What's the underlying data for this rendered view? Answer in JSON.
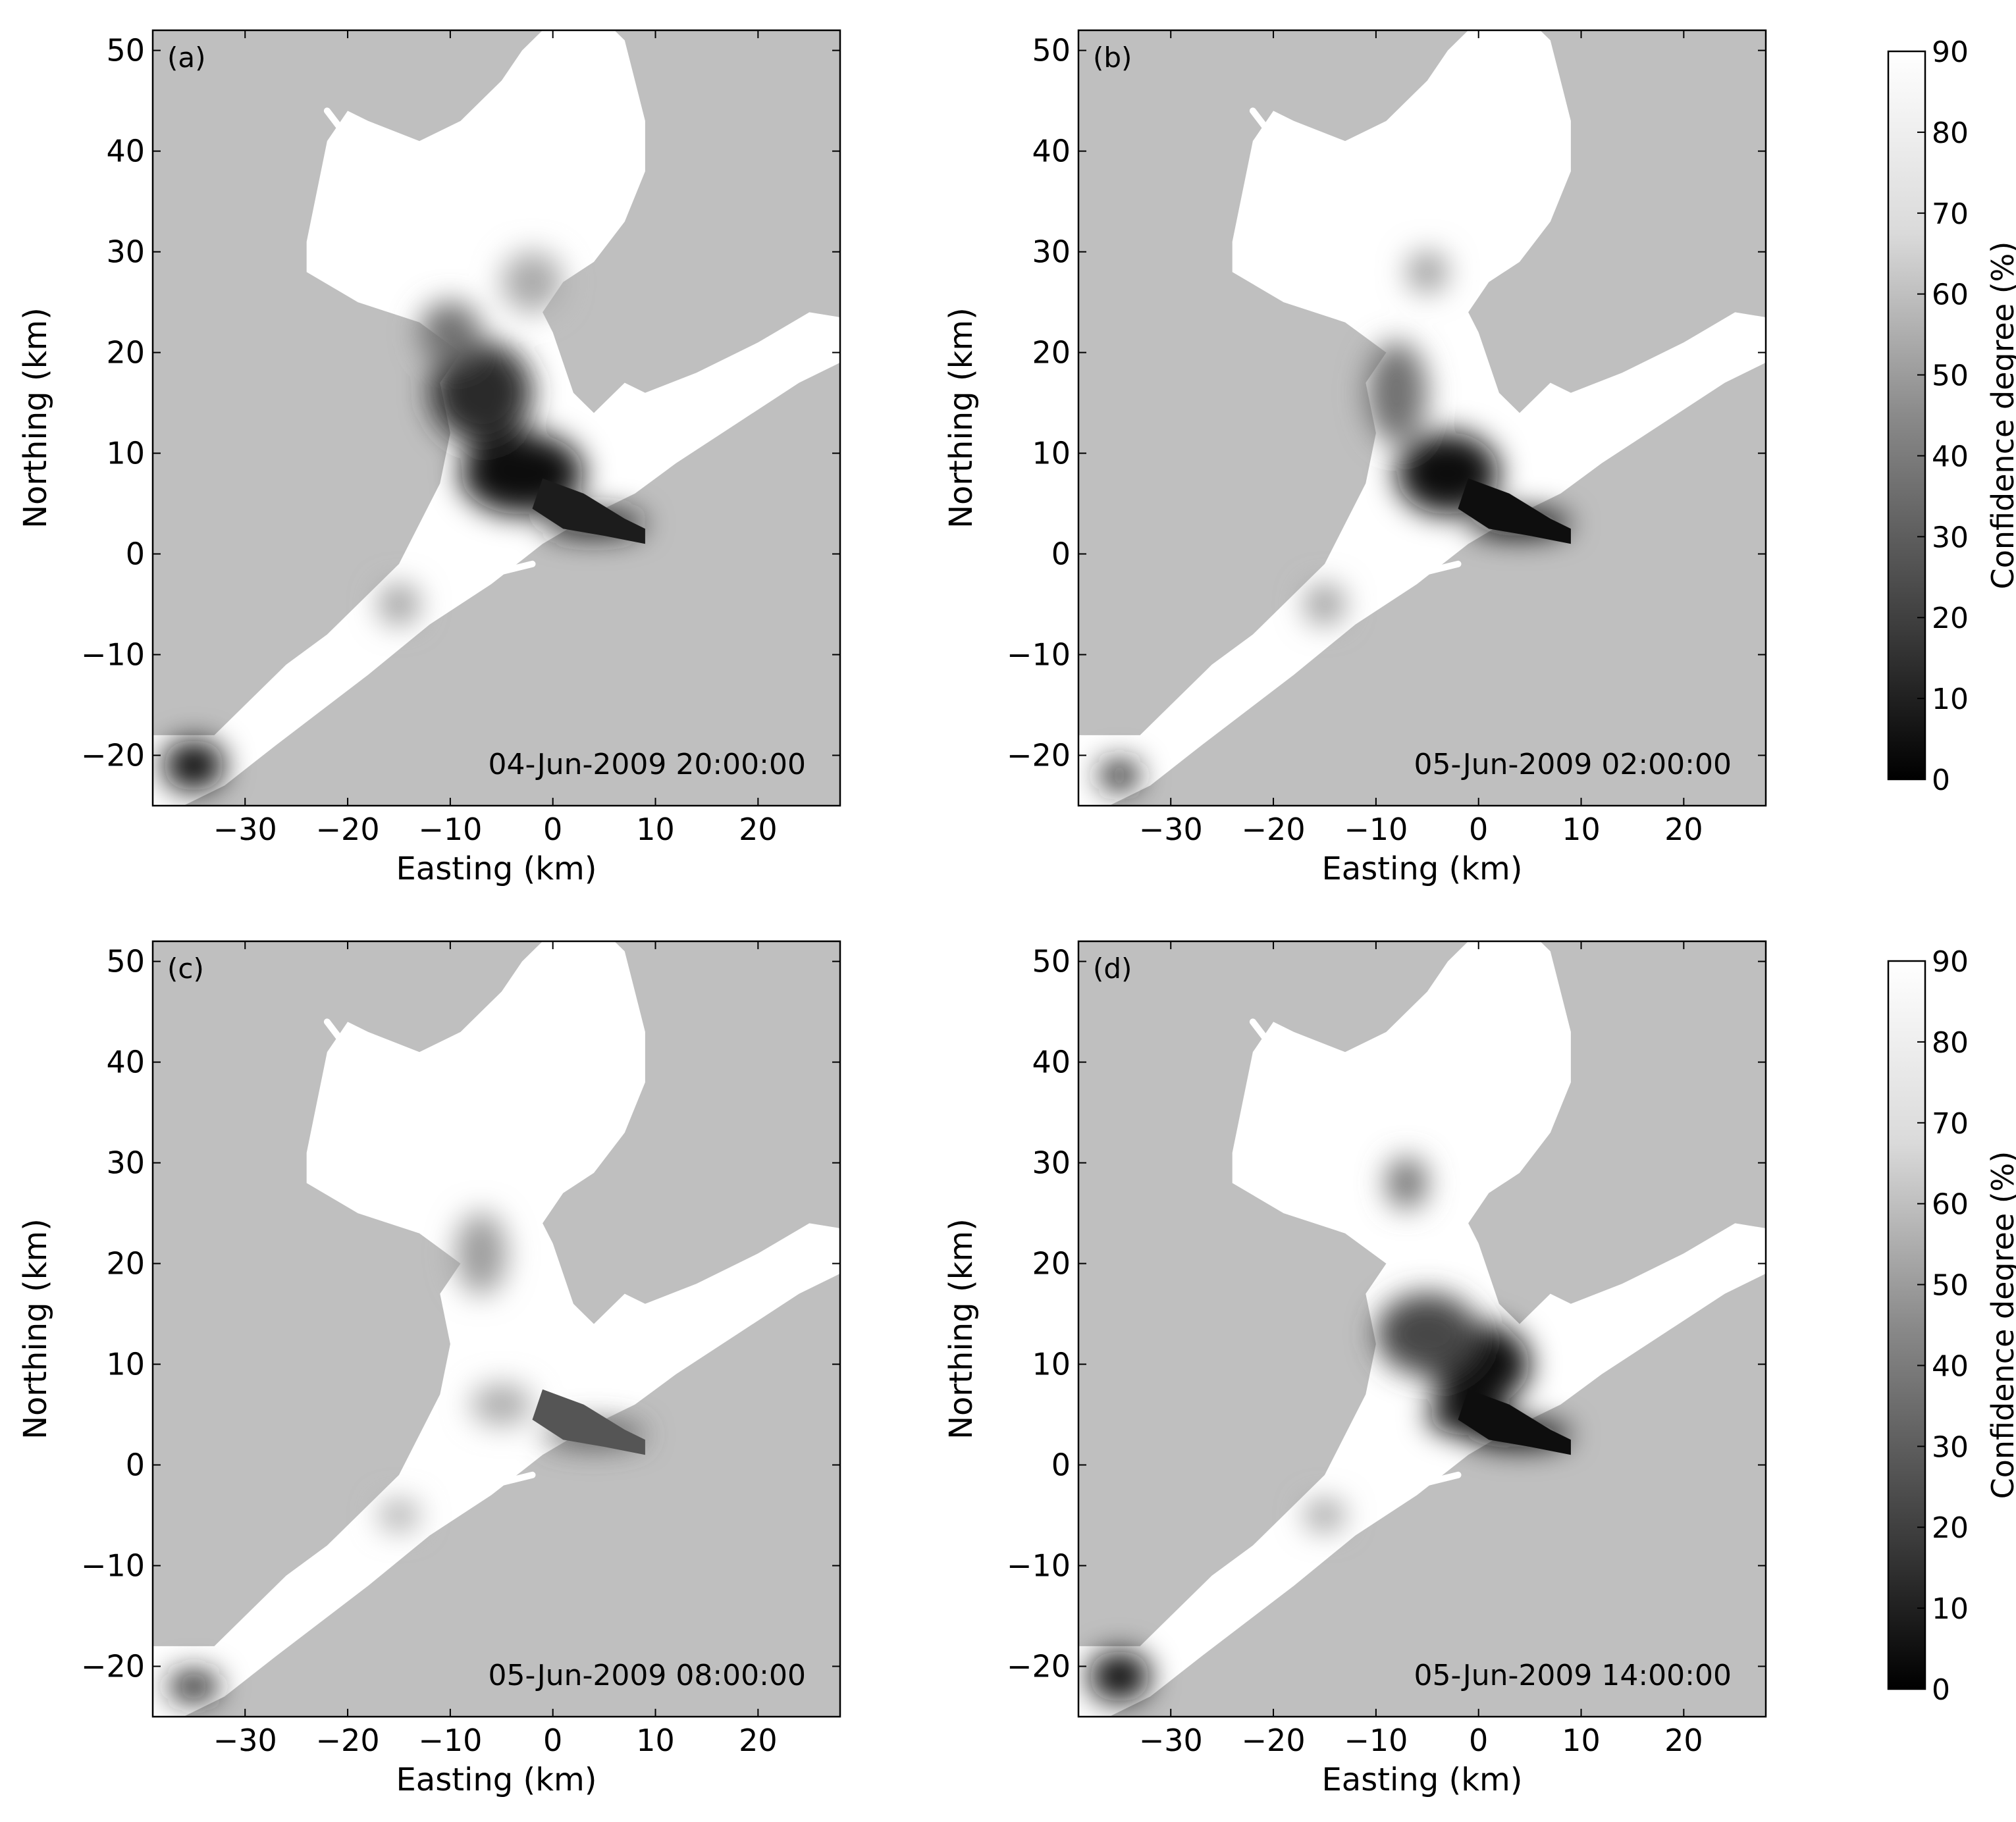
{
  "figure": {
    "colorbar": {
      "label": "Confidence degree (%)",
      "ticks": [
        0,
        10,
        20,
        30,
        40,
        50,
        60,
        70,
        80,
        90
      ]
    }
  },
  "chart_data": [
    {
      "type": "heatmap",
      "panel": "(a)",
      "timestamp": "04-Jun-2009 20:00:00",
      "xlabel": "Easting (km)",
      "ylabel": "Northing (km)",
      "xlim": [
        -39,
        28
      ],
      "ylim": [
        -25,
        52
      ],
      "xticks": [
        -30,
        -20,
        -10,
        0,
        10,
        20
      ],
      "yticks": [
        -20,
        -10,
        0,
        10,
        20,
        30,
        40,
        50
      ],
      "low_confidence_zones": [
        {
          "x": -3,
          "y": 8,
          "value": 5,
          "rx": 6,
          "ry": 4
        },
        {
          "x": 4,
          "y": 3,
          "value": 10,
          "rx": 5,
          "ry": 1.3
        },
        {
          "x": -7,
          "y": 16,
          "value": 15,
          "rx": 5,
          "ry": 5
        },
        {
          "x": -10,
          "y": 22,
          "value": 40,
          "rx": 3,
          "ry": 3
        },
        {
          "x": -2,
          "y": 27,
          "value": 60,
          "rx": 3,
          "ry": 3
        },
        {
          "x": -35,
          "y": -21,
          "value": 5,
          "rx": 3,
          "ry": 2.5
        },
        {
          "x": -15,
          "y": -5,
          "value": 55,
          "rx": 2,
          "ry": 2
        }
      ]
    },
    {
      "type": "heatmap",
      "panel": "(b)",
      "timestamp": "05-Jun-2009 02:00:00",
      "xlabel": "Easting (km)",
      "ylabel": "Northing (km)",
      "xlim": [
        -39,
        28
      ],
      "ylim": [
        -25,
        52
      ],
      "xticks": [
        -30,
        -20,
        -10,
        0,
        10,
        20
      ],
      "yticks": [
        -20,
        -10,
        0,
        10,
        20,
        30,
        40,
        50
      ],
      "low_confidence_zones": [
        {
          "x": -3,
          "y": 8,
          "value": 5,
          "rx": 5,
          "ry": 4
        },
        {
          "x": 4,
          "y": 3,
          "value": 5,
          "rx": 5,
          "ry": 1.3
        },
        {
          "x": -8,
          "y": 16,
          "value": 40,
          "rx": 3,
          "ry": 5
        },
        {
          "x": -5,
          "y": 28,
          "value": 55,
          "rx": 2,
          "ry": 2
        },
        {
          "x": -35,
          "y": -22,
          "value": 10,
          "rx": 2,
          "ry": 1.5
        },
        {
          "x": -15,
          "y": -5,
          "value": 55,
          "rx": 2,
          "ry": 2
        }
      ]
    },
    {
      "type": "heatmap",
      "panel": "(c)",
      "timestamp": "05-Jun-2009 08:00:00",
      "xlabel": "Easting (km)",
      "ylabel": "Northing (km)",
      "xlim": [
        -39,
        28
      ],
      "ylim": [
        -25,
        52
      ],
      "xticks": [
        -30,
        -20,
        -10,
        0,
        10,
        20
      ],
      "yticks": [
        -20,
        -10,
        0,
        10,
        20,
        30,
        40,
        50
      ],
      "low_confidence_zones": [
        {
          "x": -7,
          "y": 21,
          "value": 55,
          "rx": 2.5,
          "ry": 4
        },
        {
          "x": 4,
          "y": 3,
          "value": 30,
          "rx": 5,
          "ry": 1.2
        },
        {
          "x": -5,
          "y": 6,
          "value": 60,
          "rx": 3,
          "ry": 2
        },
        {
          "x": -35,
          "y": -22,
          "value": 10,
          "rx": 2.5,
          "ry": 1.5
        },
        {
          "x": -15,
          "y": -5,
          "value": 60,
          "rx": 2,
          "ry": 1.5
        }
      ]
    },
    {
      "type": "heatmap",
      "panel": "(d)",
      "timestamp": "05-Jun-2009 14:00:00",
      "xlabel": "Easting (km)",
      "ylabel": "Northing (km)",
      "xlim": [
        -39,
        28
      ],
      "ylim": [
        -25,
        52
      ],
      "xticks": [
        -30,
        -20,
        -10,
        0,
        10,
        20
      ],
      "yticks": [
        -20,
        -10,
        0,
        10,
        20,
        30,
        40,
        50
      ],
      "low_confidence_zones": [
        {
          "x": 0,
          "y": 10,
          "value": 5,
          "rx": 5,
          "ry": 4
        },
        {
          "x": -1,
          "y": 5,
          "value": 5,
          "rx": 4,
          "ry": 2
        },
        {
          "x": 4,
          "y": 3,
          "value": 5,
          "rx": 5,
          "ry": 1.3
        },
        {
          "x": -5,
          "y": 13,
          "value": 25,
          "rx": 5,
          "ry": 4
        },
        {
          "x": -7,
          "y": 28,
          "value": 40,
          "rx": 2,
          "ry": 2.5
        },
        {
          "x": -35,
          "y": -21,
          "value": 5,
          "rx": 3,
          "ry": 2.5
        },
        {
          "x": -15,
          "y": -5,
          "value": 55,
          "rx": 2,
          "ry": 1.5
        }
      ]
    }
  ]
}
